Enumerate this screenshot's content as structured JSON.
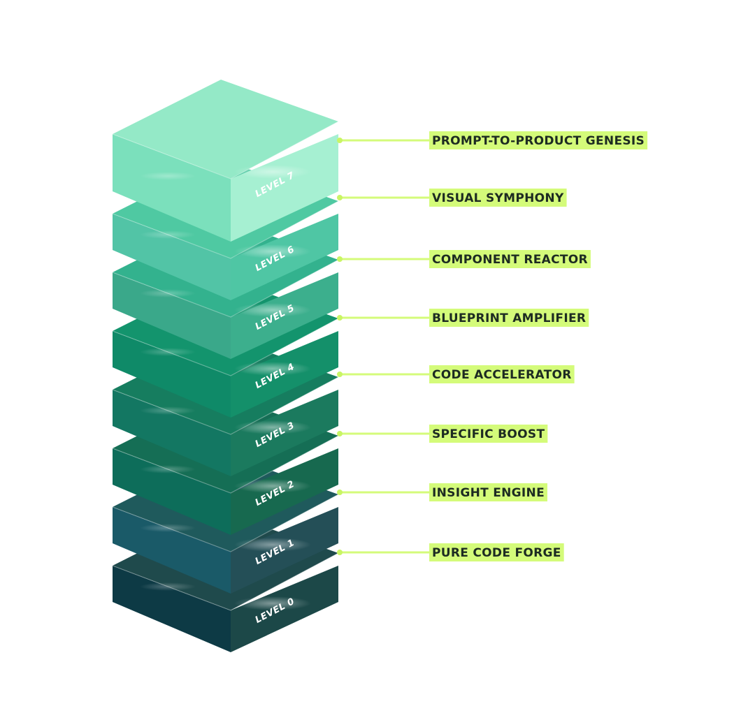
{
  "levels": [
    {
      "level": "LEVEL 0",
      "name": "PURE CODE FORGE",
      "top": "#1f4a4c",
      "left": "#0d3a45",
      "right": "#1c4848"
    },
    {
      "level": "LEVEL 1",
      "name": "INSIGHT ENGINE",
      "top": "#1f5a5c",
      "left": "#1a5a68",
      "right": "#244f57"
    },
    {
      "level": "LEVEL 2",
      "name": "SPECIFIC BOOST",
      "top": "#156e55",
      "left": "#0d6d5a",
      "right": "#17694f"
    },
    {
      "level": "LEVEL 3",
      "name": "CODE ACCELERATOR",
      "top": "#167d5f",
      "left": "#137762",
      "right": "#1b7a5e"
    },
    {
      "level": "LEVEL 4",
      "name": "BLUEPRINT AMPLIFIER",
      "top": "#13946d",
      "left": "#0f8a68",
      "right": "#14906a"
    },
    {
      "level": "LEVEL 5",
      "name": "COMPONENT REACTOR",
      "top": "#33b28e",
      "left": "#3aa88a",
      "right": "#3caf8d"
    },
    {
      "level": "LEVEL 6",
      "name": "VISUAL SYMPHONY",
      "top": "#4fc9a2",
      "left": "#52c4a6",
      "right": "#4fc6a4"
    },
    {
      "level": "LEVEL 7",
      "name": "PROMPT-TO-PRODUCT GENESIS",
      "top": "#94e9c7",
      "left": "#7be0bc",
      "right": "#a6f0d2"
    }
  ],
  "colors": {
    "label_bg": "#d4fb7a",
    "connector": "#d4fb7a",
    "dot": "#c9f565"
  }
}
